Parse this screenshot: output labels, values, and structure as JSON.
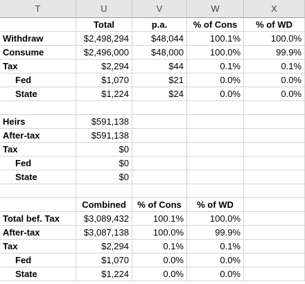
{
  "columns": [
    "T",
    "U",
    "V",
    "W",
    "X"
  ],
  "block1": {
    "headers": [
      "",
      "Total",
      "p.a.",
      "% of Cons",
      "% of WD"
    ],
    "rows": [
      {
        "label": "Withdraw",
        "total": "$2,498,294",
        "pa": "$48,044",
        "pct_cons": "100.1%",
        "pct_wd": "100.0%"
      },
      {
        "label": "Consume",
        "total": "$2,496,000",
        "pa": "$48,000",
        "pct_cons": "100.0%",
        "pct_wd": "99.9%"
      },
      {
        "label": "Tax",
        "total": "$2,294",
        "pa": "$44",
        "pct_cons": "0.1%",
        "pct_wd": "0.1%"
      },
      {
        "label": "Fed",
        "total": "$1,070",
        "pa": "$21",
        "pct_cons": "0.0%",
        "pct_wd": "0.0%"
      },
      {
        "label": "State",
        "total": "$1,224",
        "pa": "$24",
        "pct_cons": "0.0%",
        "pct_wd": "0.0%"
      }
    ]
  },
  "block2": {
    "rows": [
      {
        "label": "Heirs",
        "total": "$591,138"
      },
      {
        "label": "After-tax",
        "total": "$591,138"
      },
      {
        "label": "Tax",
        "total": "$0"
      },
      {
        "label": "Fed",
        "total": "$0"
      },
      {
        "label": "State",
        "total": "$0"
      }
    ]
  },
  "block3": {
    "headers": [
      "",
      "Combined",
      "% of Cons",
      "% of WD"
    ],
    "rows": [
      {
        "label": "Total bef. Tax",
        "combined": "$3,089,432",
        "pct_cons": "100.1%",
        "pct_wd": "100.0%"
      },
      {
        "label": "After-tax",
        "combined": "$3,087,138",
        "pct_cons": "100.0%",
        "pct_wd": "99.9%"
      },
      {
        "label": "Tax",
        "combined": "$2,294",
        "pct_cons": "0.1%",
        "pct_wd": "0.1%"
      },
      {
        "label": "Fed",
        "combined": "$1,070",
        "pct_cons": "0.0%",
        "pct_wd": "0.0%"
      },
      {
        "label": "State",
        "combined": "$1,224",
        "pct_cons": "0.0%",
        "pct_wd": "0.0%"
      }
    ]
  }
}
